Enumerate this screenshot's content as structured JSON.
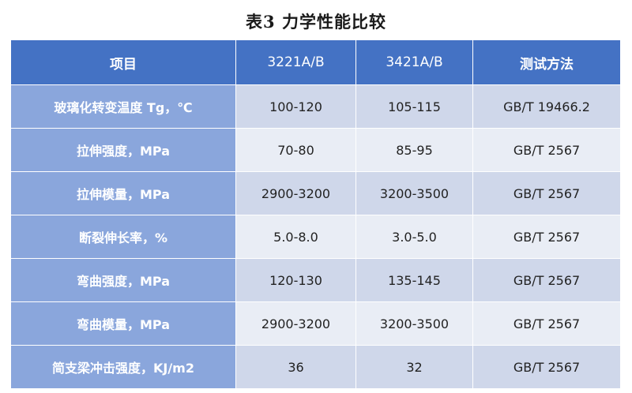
{
  "title": "表3  力学性能比较",
  "headers": [
    "项目",
    "3221A/B",
    "3421A/B",
    "测试方法"
  ],
  "rows": [
    {
      "item": "玻璃化转变温度 Tg，℃",
      "a": "100-120",
      "b": "105-115",
      "method": "GB/T 19466.2"
    },
    {
      "item": "拉伸强度，MPa",
      "a": "70-80",
      "b": "85-95",
      "method": "GB/T 2567"
    },
    {
      "item": "拉伸模量，MPa",
      "a": "2900-3200",
      "b": "3200-3500",
      "method": "GB/T 2567"
    },
    {
      "item": "断裂伸长率，%",
      "a": "5.0-8.0",
      "b": "3.0-5.0",
      "method": "GB/T 2567"
    },
    {
      "item": "弯曲强度，MPa",
      "a": "120-130",
      "b": "135-145",
      "method": "GB/T 2567"
    },
    {
      "item": "弯曲模量，MPa",
      "a": "2900-3200",
      "b": "3200-3500",
      "method": "GB/T 2567"
    },
    {
      "item": "简支梁冲击强度，KJ/m2",
      "a": "36",
      "b": "32",
      "method": "GB/T 2567"
    }
  ],
  "colors": {
    "header_bg": "#4472c4",
    "label_bg": "#8aa6dc",
    "row_odd_bg": "#cfd7ea",
    "row_even_bg": "#e9edf5"
  }
}
